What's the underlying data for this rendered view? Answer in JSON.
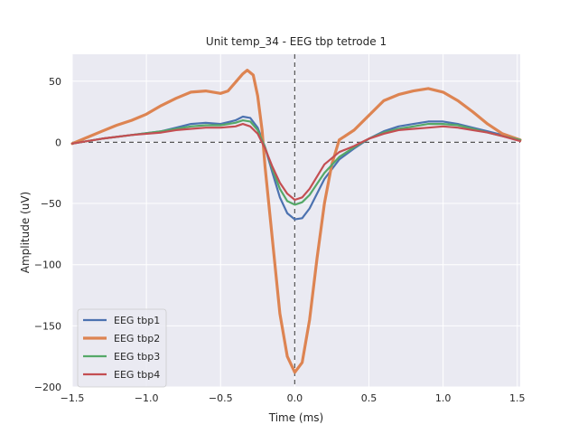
{
  "chart_data": {
    "type": "line",
    "title": "Unit temp_34 - EEG tbp tetrode 1",
    "xlabel": "Time (ms)",
    "ylabel": "Amplitude (uV)",
    "xlim": [
      -1.5,
      1.52
    ],
    "ylim": [
      -200,
      72
    ],
    "xticks": [
      -1.5,
      -1.0,
      -0.5,
      0.0,
      0.5,
      1.0,
      1.5
    ],
    "xtick_labels": [
      "−1.5",
      "−1.0",
      "−0.5",
      "0.0",
      "0.5",
      "1.0",
      "1.5"
    ],
    "yticks": [
      -200,
      -150,
      -100,
      -50,
      0,
      50
    ],
    "ytick_labels": [
      "−200",
      "−150",
      "−100",
      "−50",
      "0",
      "50"
    ],
    "grid": true,
    "reference_lines": {
      "x": 0,
      "y": 0
    },
    "legend_position": "lower-left",
    "colors": {
      "background": "#eaeaf2",
      "grid": "#ffffff",
      "reference": "#555555",
      "EEG tbp1": "#4c72b0",
      "EEG tbp2": "#dd8452",
      "EEG tbp3": "#55a868",
      "EEG tbp4": "#c44e52"
    },
    "series": [
      {
        "name": "EEG tbp1",
        "x": [
          -1.5,
          -1.3,
          -1.1,
          -0.9,
          -0.8,
          -0.7,
          -0.6,
          -0.5,
          -0.4,
          -0.35,
          -0.3,
          -0.25,
          -0.2,
          -0.15,
          -0.1,
          -0.05,
          0.0,
          0.05,
          0.1,
          0.15,
          0.2,
          0.3,
          0.4,
          0.5,
          0.6,
          0.7,
          0.8,
          0.9,
          1.0,
          1.1,
          1.2,
          1.3,
          1.4,
          1.52
        ],
        "y": [
          -1,
          3,
          6,
          9,
          12,
          15,
          16,
          15,
          18,
          21,
          20,
          12,
          -4,
          -25,
          -45,
          -58,
          -63,
          -62,
          -54,
          -42,
          -30,
          -14,
          -5,
          3,
          9,
          13,
          15,
          17,
          17,
          15,
          12,
          9,
          6,
          2
        ]
      },
      {
        "name": "EEG tbp2",
        "x": [
          -1.5,
          -1.4,
          -1.3,
          -1.2,
          -1.1,
          -1.0,
          -0.9,
          -0.8,
          -0.7,
          -0.6,
          -0.55,
          -0.5,
          -0.45,
          -0.4,
          -0.35,
          -0.32,
          -0.28,
          -0.25,
          -0.22,
          -0.2,
          -0.15,
          -0.1,
          -0.05,
          0.0,
          0.05,
          0.1,
          0.15,
          0.2,
          0.25,
          0.3,
          0.4,
          0.5,
          0.6,
          0.7,
          0.8,
          0.9,
          1.0,
          1.1,
          1.2,
          1.3,
          1.4,
          1.52
        ],
        "y": [
          -1,
          4,
          9,
          14,
          18,
          23,
          30,
          36,
          41,
          42,
          41,
          40,
          42,
          49,
          56,
          59,
          55,
          38,
          10,
          -20,
          -80,
          -140,
          -175,
          -188,
          -180,
          -145,
          -95,
          -50,
          -18,
          2,
          10,
          22,
          34,
          39,
          42,
          44,
          41,
          34,
          25,
          15,
          7,
          2
        ]
      },
      {
        "name": "EEG tbp3",
        "x": [
          -1.5,
          -1.3,
          -1.1,
          -0.9,
          -0.8,
          -0.7,
          -0.6,
          -0.5,
          -0.4,
          -0.35,
          -0.3,
          -0.25,
          -0.2,
          -0.15,
          -0.1,
          -0.05,
          0.0,
          0.05,
          0.1,
          0.15,
          0.2,
          0.3,
          0.4,
          0.5,
          0.6,
          0.7,
          0.8,
          0.9,
          1.0,
          1.1,
          1.2,
          1.3,
          1.4,
          1.52
        ],
        "y": [
          -1,
          3,
          6,
          9,
          11,
          13,
          14,
          14,
          16,
          18,
          17,
          10,
          -4,
          -22,
          -38,
          -48,
          -51,
          -49,
          -43,
          -34,
          -25,
          -12,
          -4,
          3,
          8,
          11,
          13,
          15,
          15,
          14,
          11,
          8,
          5,
          2
        ]
      },
      {
        "name": "EEG tbp4",
        "x": [
          -1.5,
          -1.3,
          -1.1,
          -0.9,
          -0.8,
          -0.7,
          -0.6,
          -0.5,
          -0.4,
          -0.35,
          -0.3,
          -0.25,
          -0.2,
          -0.15,
          -0.1,
          -0.05,
          0.0,
          0.05,
          0.1,
          0.15,
          0.2,
          0.3,
          0.4,
          0.5,
          0.6,
          0.7,
          0.8,
          0.9,
          1.0,
          1.1,
          1.2,
          1.3,
          1.4,
          1.52
        ],
        "y": [
          -1,
          3,
          6,
          8,
          10,
          11,
          12,
          12,
          13,
          15,
          13,
          7,
          -5,
          -20,
          -33,
          -42,
          -47,
          -45,
          -38,
          -28,
          -18,
          -8,
          -3,
          3,
          7,
          10,
          11,
          12,
          13,
          12,
          10,
          8,
          5,
          1
        ]
      }
    ]
  }
}
